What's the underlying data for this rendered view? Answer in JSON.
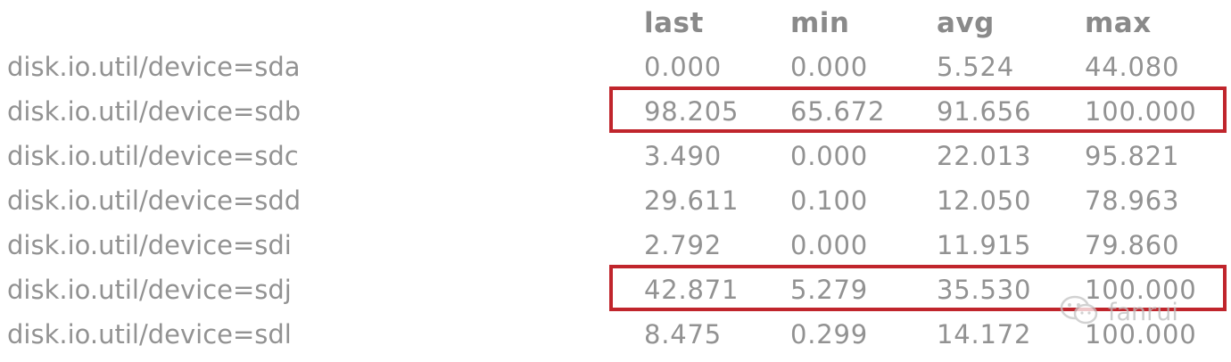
{
  "headers": {
    "last": "last",
    "min": "min",
    "avg": "avg",
    "max": "max"
  },
  "rows": [
    {
      "label": "disk.io.util/device=sda",
      "last": "0.000",
      "min": "0.000",
      "avg": "5.524",
      "max": "44.080"
    },
    {
      "label": "disk.io.util/device=sdb",
      "last": "98.205",
      "min": "65.672",
      "avg": "91.656",
      "max": "100.000"
    },
    {
      "label": "disk.io.util/device=sdc",
      "last": "3.490",
      "min": "0.000",
      "avg": "22.013",
      "max": "95.821"
    },
    {
      "label": "disk.io.util/device=sdd",
      "last": "29.611",
      "min": "0.100",
      "avg": "12.050",
      "max": "78.963"
    },
    {
      "label": "disk.io.util/device=sdi",
      "last": "2.792",
      "min": "0.000",
      "avg": "11.915",
      "max": "79.860"
    },
    {
      "label": "disk.io.util/device=sdj",
      "last": "42.871",
      "min": "5.279",
      "avg": "35.530",
      "max": "100.000"
    },
    {
      "label": "disk.io.util/device=sdl",
      "last": "8.475",
      "min": "0.299",
      "avg": "14.172",
      "max": "100.000"
    }
  ],
  "highlight_color": "#c0252c",
  "watermark": {
    "icon": "wechat-icon",
    "text": "fanrui"
  }
}
